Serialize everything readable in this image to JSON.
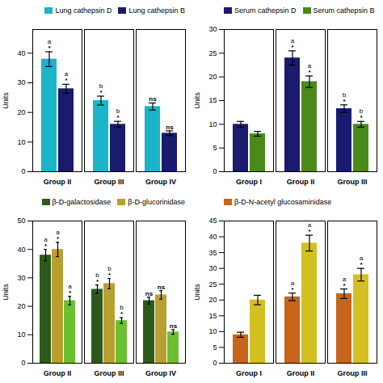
{
  "chart_data": [
    {
      "type": "bar",
      "categories": [
        "Group II",
        "Group III",
        "Group IV"
      ],
      "series": [
        {
          "name": "Lung cathepsin D",
          "color": "#1ab5c8",
          "values": [
            38,
            24,
            22
          ],
          "errors": [
            2.5,
            1.5,
            1.2
          ],
          "stars": [
            "*",
            "*",
            "ns"
          ],
          "letters": [
            "a",
            "b",
            null
          ]
        },
        {
          "name": "Lung cathepsin B",
          "color": "#1a1a6e",
          "values": [
            28,
            16,
            13
          ],
          "errors": [
            1.5,
            1.0,
            0.8
          ],
          "stars": [
            "*",
            "*",
            "ns"
          ],
          "letters": [
            "a",
            "b",
            null
          ]
        }
      ],
      "ylabel": "Units",
      "ylim": [
        0,
        48
      ],
      "yticks": [
        0,
        10,
        20,
        30,
        40
      ],
      "legend": "upper right"
    },
    {
      "type": "bar",
      "categories": [
        "Group I",
        "Group II",
        "Group III"
      ],
      "series": [
        {
          "name": "Serum cathepsin D",
          "color": "#1a1a6e",
          "values": [
            10,
            24,
            13.3
          ],
          "errors": [
            0.6,
            1.5,
            0.8
          ],
          "stars": [
            null,
            "*",
            "*"
          ],
          "letters": [
            null,
            "a",
            "b"
          ]
        },
        {
          "name": "Serum cathepsin B",
          "color": "#4a8a1a",
          "values": [
            8,
            19,
            10
          ],
          "errors": [
            0.5,
            1.2,
            0.6
          ],
          "stars": [
            null,
            "*",
            "*"
          ],
          "letters": [
            null,
            "a",
            "b"
          ]
        }
      ],
      "ylabel": "Units",
      "ylim": [
        0,
        30
      ],
      "yticks": [
        0,
        5,
        10,
        15,
        20,
        25,
        30
      ],
      "legend": "upper left"
    },
    {
      "type": "bar",
      "categories": [
        "Group II",
        "Group III",
        "Group IV"
      ],
      "series": [
        {
          "name": "β-D-galactosidase",
          "color": "#2d5a1a",
          "values": [
            38,
            26,
            22
          ],
          "errors": [
            2.0,
            1.5,
            1.2
          ],
          "stars": [
            "*",
            "*",
            "ns"
          ],
          "letters": [
            "a",
            "b",
            null
          ]
        },
        {
          "name": "β-D-glucorinidase",
          "color": "#b8a030",
          "values": [
            40,
            28,
            24
          ],
          "errors": [
            2.5,
            1.8,
            1.5
          ],
          "stars": [
            "*",
            "*",
            "ns"
          ],
          "letters": [
            "a",
            "b",
            null
          ]
        },
        {
          "color": "#6ac030",
          "values": [
            22,
            15,
            11
          ],
          "errors": [
            1.5,
            1.0,
            0.8
          ],
          "stars": [
            "*",
            "*",
            "ns"
          ],
          "letters": [
            "a",
            "b",
            null
          ]
        }
      ],
      "ylabel": "Units",
      "ylim": [
        0,
        50
      ],
      "yticks": [
        0,
        10,
        20,
        30,
        40,
        50
      ],
      "legend": "upper right"
    },
    {
      "type": "bar",
      "categories": [
        "Group I",
        "Group II",
        "Group III"
      ],
      "series": [
        {
          "name": "β-D-N-acetyl glucosaminidase",
          "color": "#c8651a",
          "values": [
            9,
            21,
            22
          ],
          "errors": [
            0.8,
            1.2,
            1.5
          ],
          "stars": [
            null,
            "*",
            "*"
          ],
          "letters": [
            null,
            "a",
            "a"
          ]
        },
        {
          "color": "#d4c020",
          "values": [
            20,
            38,
            28
          ],
          "errors": [
            1.5,
            2.5,
            2.0
          ],
          "stars": [
            null,
            "*",
            "*"
          ],
          "letters": [
            null,
            "a",
            "a"
          ]
        }
      ],
      "ylabel": "Units",
      "ylim": [
        0,
        45
      ],
      "yticks": [
        0,
        5,
        10,
        15,
        20,
        25,
        30,
        35,
        40,
        45
      ],
      "legend": "upper left"
    }
  ]
}
